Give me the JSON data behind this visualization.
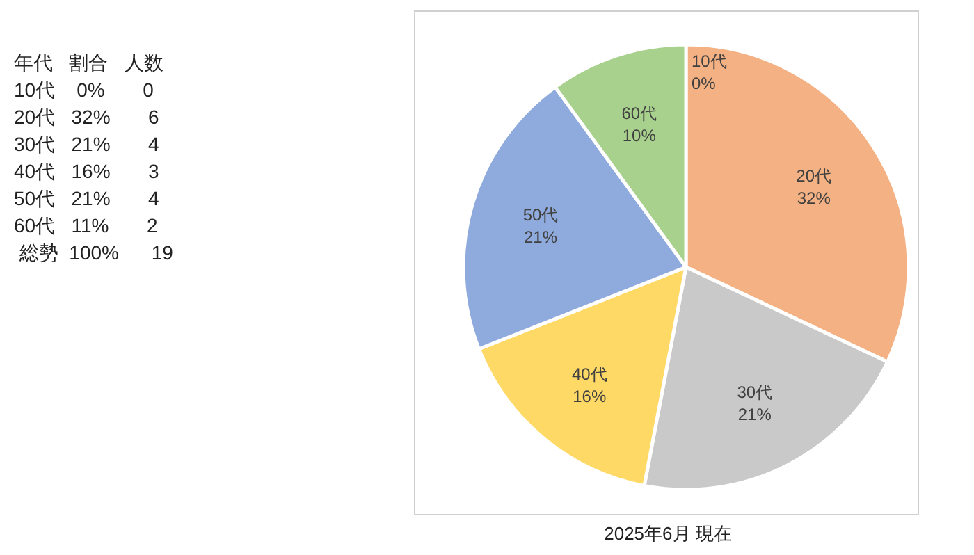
{
  "chart_data": [
    {
      "type": "other",
      "annotations": [
        "年代",
        "割合",
        "人数",
        "10代",
        "0%",
        "0",
        "20代",
        "32%",
        "6",
        "30代",
        "21%",
        "4",
        "40代",
        "16%",
        "3",
        "50代",
        "21%",
        "4",
        "60代",
        "11%",
        "2",
        "総勢",
        "100%",
        "19"
      ]
    },
    {
      "type": "pie",
      "categories": [
        "10代",
        "20代",
        "30代",
        "40代",
        "50代",
        "60代"
      ],
      "values": [
        0,
        32,
        21,
        16,
        21,
        10
      ],
      "value_labels": [
        "0%",
        "32%",
        "21%",
        "16%",
        "21%",
        "10%"
      ],
      "colors": [
        "#9dc3e6",
        "#f4b183",
        "#c9c9c9",
        "#ffd966",
        "#8faadc",
        "#a9d18e"
      ],
      "annotations": [
        "2025年6月 現在"
      ],
      "legend": false
    }
  ]
}
